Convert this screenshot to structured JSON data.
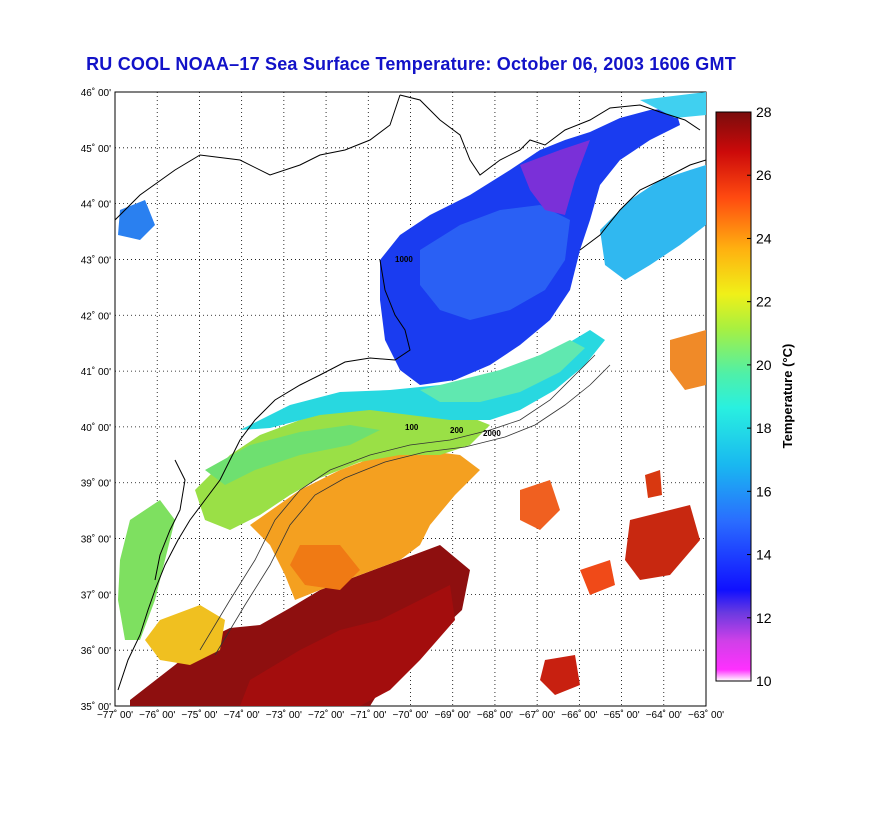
{
  "title": "RU COOL  NOAA–17  Sea Surface Temperature:  October 06, 2003 1606 GMT",
  "map": {
    "lat_labels": [
      "46˚ 00'",
      "45˚ 00'",
      "44˚ 00'",
      "43˚ 00'",
      "42˚ 00'",
      "41˚ 00'",
      "40˚ 00'",
      "39˚ 00'",
      "38˚ 00'",
      "37˚ 00'",
      "36˚ 00'",
      "35˚ 00'"
    ],
    "lon_labels": [
      "−77˚ 00'",
      "−76˚ 00'",
      "−75˚ 00'",
      "−74˚ 00'",
      "−73˚ 00'",
      "−72˚ 00'",
      "−71˚ 00'",
      "−70˚ 00'",
      "−69˚ 00'",
      "−68˚ 00'",
      "−67˚ 00'",
      "−66˚ 00'",
      "−65˚ 00'",
      "−64˚ 00'",
      "−63˚ 00'"
    ],
    "lat_range": [
      35,
      46
    ],
    "lon_range": [
      -77,
      -63
    ],
    "isobaths": [
      "100",
      "200",
      "1000",
      "2000"
    ]
  },
  "colorbar": {
    "title": "Temperature (°C)",
    "ticks": [
      "28",
      "26",
      "24",
      "22",
      "20",
      "18",
      "16",
      "14",
      "12",
      "10"
    ],
    "range": [
      10,
      28
    ]
  },
  "colors": {
    "title": "#1212c8",
    "grid": "#000000",
    "land": "#ffffff",
    "coast": "#000000"
  }
}
